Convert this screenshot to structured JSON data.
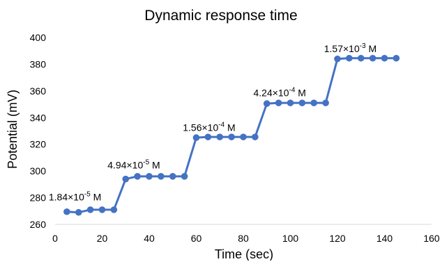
{
  "chart_data": {
    "type": "line",
    "title": "Dynamic response time",
    "xlabel": "Time (sec)",
    "ylabel": "Potential (mV)",
    "xlim": [
      0,
      160
    ],
    "ylim": [
      260,
      400
    ],
    "x_ticks": [
      0,
      20,
      40,
      60,
      80,
      100,
      120,
      140,
      160
    ],
    "y_ticks": [
      260,
      280,
      300,
      320,
      340,
      360,
      380,
      400
    ],
    "grid": false,
    "legend": "none",
    "series": [
      {
        "color": "#4472C4",
        "marker": "circle",
        "x": [
          5,
          10,
          15,
          20,
          25,
          30,
          35,
          40,
          45,
          50,
          55,
          60,
          65,
          70,
          75,
          80,
          85,
          90,
          95,
          100,
          105,
          110,
          115,
          120,
          125,
          130,
          135,
          140,
          145
        ],
        "y": [
          269.5,
          269,
          271,
          271,
          271,
          294,
          296,
          296,
          296,
          296,
          296,
          325,
          325.5,
          325.5,
          325.5,
          325.5,
          325.5,
          350.5,
          351,
          351,
          351,
          351,
          351,
          384,
          384.5,
          384.5,
          384.5,
          384.5,
          384.5
        ]
      }
    ],
    "annotations": [
      {
        "mantissa": "1.84×10",
        "exponent": "-5",
        "unit": " M",
        "x": 5,
        "y": 278
      },
      {
        "mantissa": "4.94×10",
        "exponent": "-5",
        "unit": " M",
        "x": 30,
        "y": 302
      },
      {
        "mantissa": "1.56×10",
        "exponent": "-4",
        "unit": " M",
        "x": 62,
        "y": 330
      },
      {
        "mantissa": "4.24×10",
        "exponent": "-4",
        "unit": " M",
        "x": 92,
        "y": 356
      },
      {
        "mantissa": "1.57×10",
        "exponent": "-3",
        "unit": " M",
        "x": 122,
        "y": 389
      }
    ]
  }
}
